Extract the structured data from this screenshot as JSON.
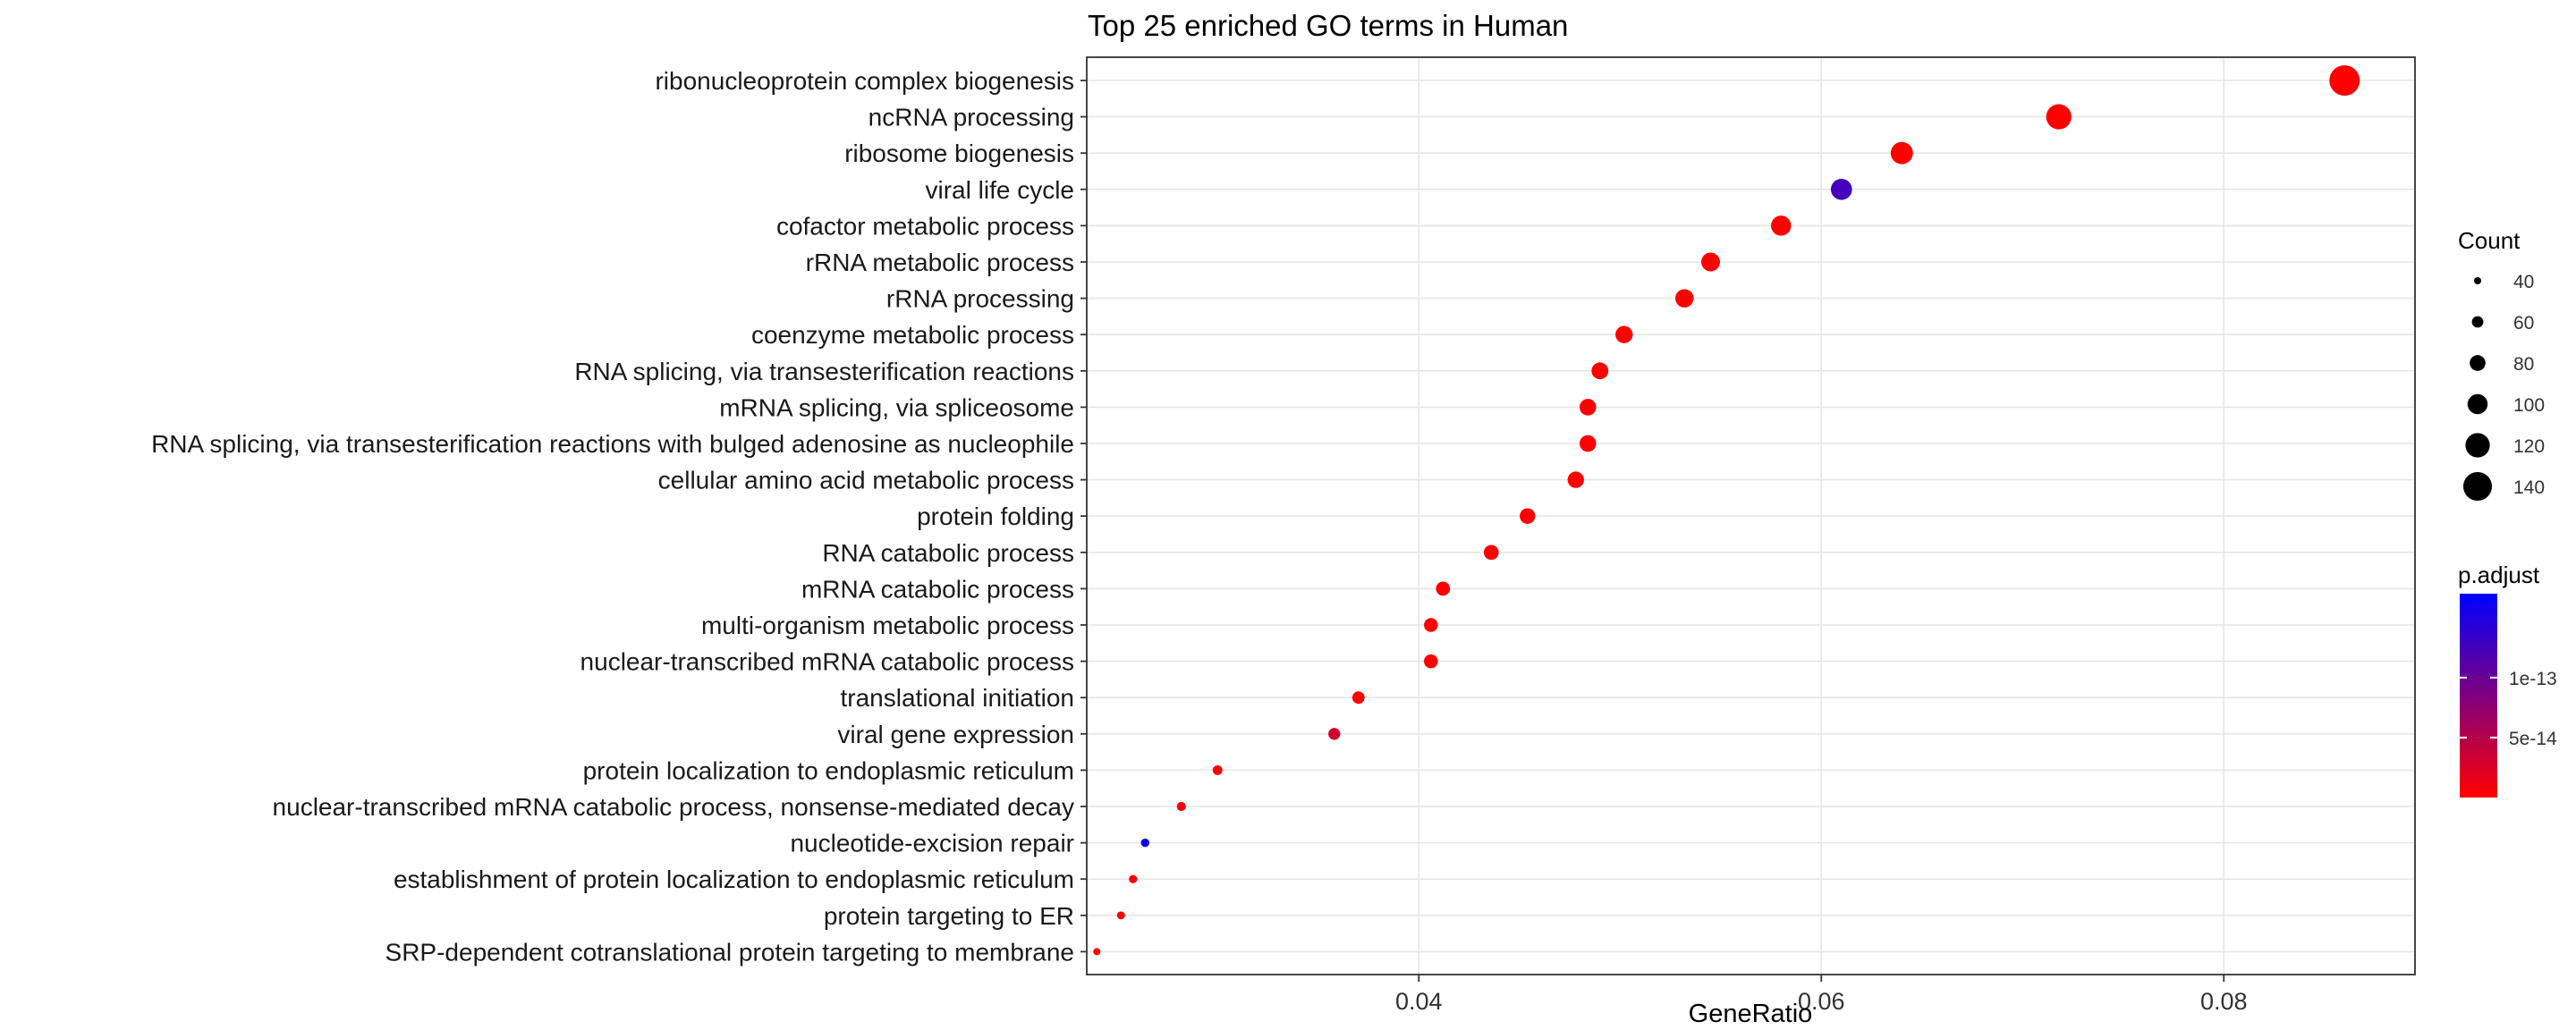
{
  "chart_data": {
    "type": "scatter",
    "title": "Top 25 enriched GO terms in Human",
    "xlabel": "GeneRatio",
    "ylabel": "",
    "xlim": [
      0.0235,
      0.0895
    ],
    "xticks": [
      0.04,
      0.06,
      0.08
    ],
    "xtick_labels": [
      "0.04",
      "0.06",
      "0.08"
    ],
    "grid": true,
    "terms": [
      {
        "term": "ribonucleoprotein complex biogenesis",
        "gene_ratio": 0.086,
        "count": 148,
        "p_adjust": 1e-16
      },
      {
        "term": "ncRNA processing",
        "gene_ratio": 0.0718,
        "count": 124,
        "p_adjust": 1e-16
      },
      {
        "term": "ribosome biogenesis",
        "gene_ratio": 0.064,
        "count": 110,
        "p_adjust": 1e-16
      },
      {
        "term": "viral life cycle",
        "gene_ratio": 0.061,
        "count": 105,
        "p_adjust": 1.25e-13
      },
      {
        "term": "cofactor metabolic process",
        "gene_ratio": 0.058,
        "count": 100,
        "p_adjust": 1e-16
      },
      {
        "term": "rRNA metabolic process",
        "gene_ratio": 0.0545,
        "count": 94,
        "p_adjust": 1e-16
      },
      {
        "term": "rRNA processing",
        "gene_ratio": 0.0532,
        "count": 92,
        "p_adjust": 1e-16
      },
      {
        "term": "coenzyme metabolic process",
        "gene_ratio": 0.0502,
        "count": 87,
        "p_adjust": 1e-16
      },
      {
        "term": "RNA splicing, via transesterification reactions",
        "gene_ratio": 0.049,
        "count": 85,
        "p_adjust": 1e-16
      },
      {
        "term": "mRNA splicing, via spliceosome",
        "gene_ratio": 0.0484,
        "count": 84,
        "p_adjust": 1e-16
      },
      {
        "term": "RNA splicing, via transesterification reactions with bulged adenosine as nucleophile",
        "gene_ratio": 0.0484,
        "count": 84,
        "p_adjust": 1e-16
      },
      {
        "term": "cellular amino acid metabolic process",
        "gene_ratio": 0.0478,
        "count": 83,
        "p_adjust": 1e-16
      },
      {
        "term": "protein folding",
        "gene_ratio": 0.0454,
        "count": 79,
        "p_adjust": 1e-16
      },
      {
        "term": "RNA catabolic process",
        "gene_ratio": 0.0436,
        "count": 76,
        "p_adjust": 1e-16
      },
      {
        "term": "mRNA catabolic process",
        "gene_ratio": 0.0412,
        "count": 72,
        "p_adjust": 1e-16
      },
      {
        "term": "multi-organism metabolic process",
        "gene_ratio": 0.0406,
        "count": 71,
        "p_adjust": 1e-16
      },
      {
        "term": "nuclear-transcribed mRNA catabolic process",
        "gene_ratio": 0.0406,
        "count": 71,
        "p_adjust": 1e-16
      },
      {
        "term": "translational initiation",
        "gene_ratio": 0.037,
        "count": 64,
        "p_adjust": 1e-15
      },
      {
        "term": "viral gene expression",
        "gene_ratio": 0.0358,
        "count": 62,
        "p_adjust": 3e-14
      },
      {
        "term": "protein localization to endoplasmic reticulum",
        "gene_ratio": 0.03,
        "count": 52,
        "p_adjust": 1e-15
      },
      {
        "term": "nuclear-transcribed mRNA catabolic process, nonsense-mediated decay",
        "gene_ratio": 0.0282,
        "count": 49,
        "p_adjust": 1e-15
      },
      {
        "term": "nucleotide-excision repair",
        "gene_ratio": 0.0264,
        "count": 46,
        "p_adjust": 1.6e-13
      },
      {
        "term": "establishment of protein localization to endoplasmic reticulum",
        "gene_ratio": 0.0258,
        "count": 45,
        "p_adjust": 1e-15
      },
      {
        "term": "protein targeting to ER",
        "gene_ratio": 0.0252,
        "count": 44,
        "p_adjust": 1e-15
      },
      {
        "term": "SRP-dependent cotranslational protein targeting to membrane",
        "gene_ratio": 0.024,
        "count": 40,
        "p_adjust": 1e-15
      }
    ],
    "size_legend": {
      "title": "Count",
      "breaks": [
        40,
        60,
        80,
        100,
        120,
        140
      ],
      "labels": [
        "40",
        "60",
        "80",
        "100",
        "120",
        "140"
      ]
    },
    "color_legend": {
      "title": "p.adjust",
      "range": [
        0,
        1.7e-13
      ],
      "breaks": [
        5e-14,
        1e-13
      ],
      "labels": [
        "5e-14",
        "1e-13"
      ],
      "low_color": "#ff0000",
      "high_color": "#0000ff"
    }
  }
}
